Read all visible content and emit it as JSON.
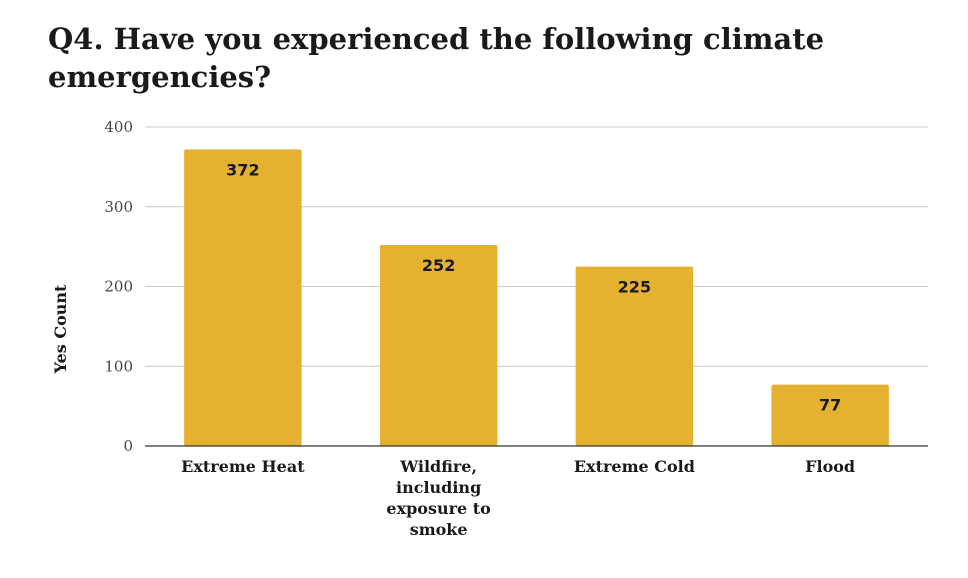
{
  "chart_data": {
    "type": "bar",
    "title": "Q4. Have you experienced the following climate emergencies?",
    "xlabel": "",
    "ylabel": "Yes Count",
    "categories": [
      "Extreme Heat",
      "Wildfire, including exposure to smoke",
      "Extreme Cold",
      "Flood"
    ],
    "category_label_lines": [
      [
        "Extreme Heat"
      ],
      [
        "Wildfire,",
        "including",
        "exposure to",
        "smoke"
      ],
      [
        "Extreme Cold"
      ],
      [
        "Flood"
      ]
    ],
    "values": [
      372,
      252,
      225,
      77
    ],
    "ylim": [
      0,
      400
    ],
    "yticks": [
      0,
      100,
      200,
      300,
      400
    ],
    "grid": true,
    "legend": "none",
    "bar_color": "#e4b131",
    "data_labels": true
  }
}
